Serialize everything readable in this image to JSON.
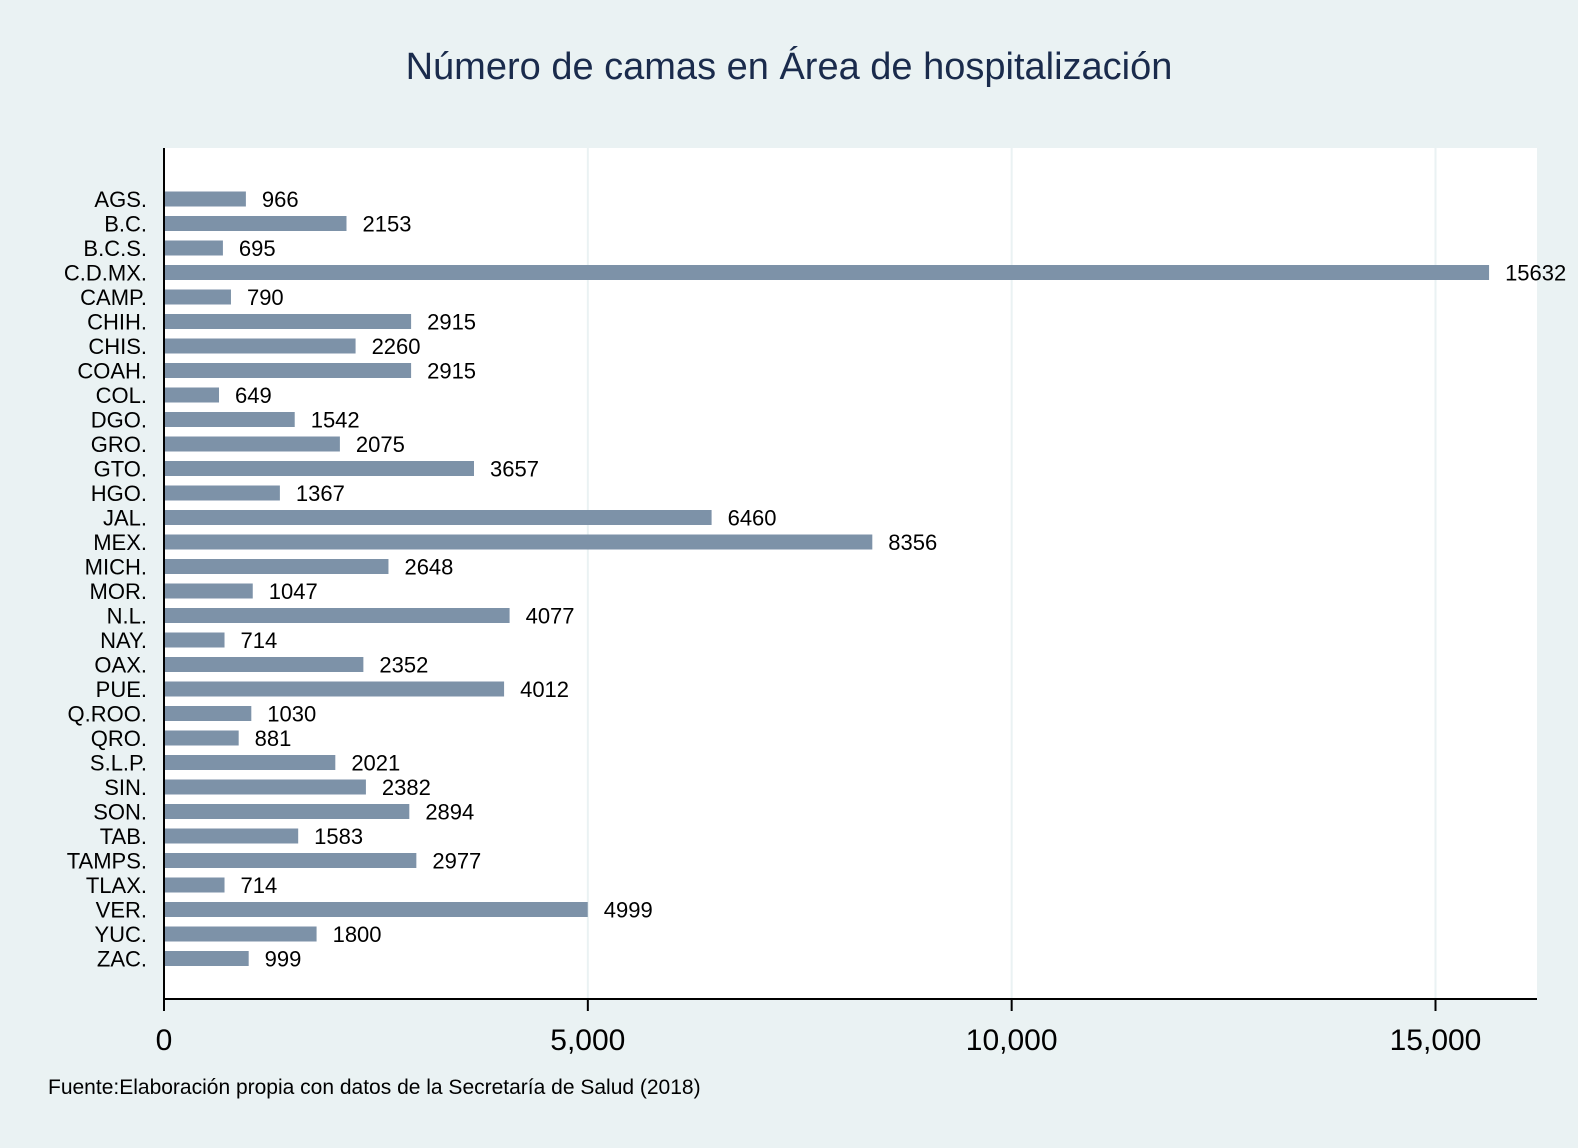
{
  "chart_data": {
    "type": "bar",
    "orientation": "horizontal",
    "title": "Número de camas en Área de hospitalización",
    "note": "Fuente:Elaboración propia con datos de la Secretaría de Salud (2018)",
    "categories": [
      "AGS.",
      "B.C.",
      "B.C.S.",
      "C.D.MX.",
      "CAMP.",
      "CHIH.",
      "CHIS.",
      "COAH.",
      "COL.",
      "DGO.",
      "GRO.",
      "GTO.",
      "HGO.",
      "JAL.",
      "MEX.",
      "MICH.",
      "MOR.",
      "N.L.",
      "NAY.",
      "OAX.",
      "PUE.",
      "Q.ROO.",
      "QRO.",
      "S.L.P.",
      "SIN.",
      "SON.",
      "TAB.",
      "TAMPS.",
      "TLAX.",
      "VER.",
      "YUC.",
      "ZAC."
    ],
    "values": [
      966,
      2153,
      695,
      15632,
      790,
      2915,
      2260,
      2915,
      649,
      1542,
      2075,
      3657,
      1367,
      6460,
      8356,
      2648,
      1047,
      4077,
      714,
      2352,
      4012,
      1030,
      881,
      2021,
      2382,
      2894,
      1583,
      2977,
      714,
      4999,
      1800,
      999
    ],
    "xlim": [
      0,
      16100
    ],
    "xticks": [
      0,
      5000,
      10000,
      15000
    ],
    "xtick_labels": [
      "0",
      "5,000",
      "10,000",
      "15,000"
    ],
    "grid": "vertical",
    "data_labels": true,
    "colors": {
      "bar": "#7d92a8",
      "plot_bg": "#ffffff",
      "outer_bg": "#eaf2f3",
      "grid": "#eaf2f3",
      "title": "#1a2b4c"
    }
  }
}
